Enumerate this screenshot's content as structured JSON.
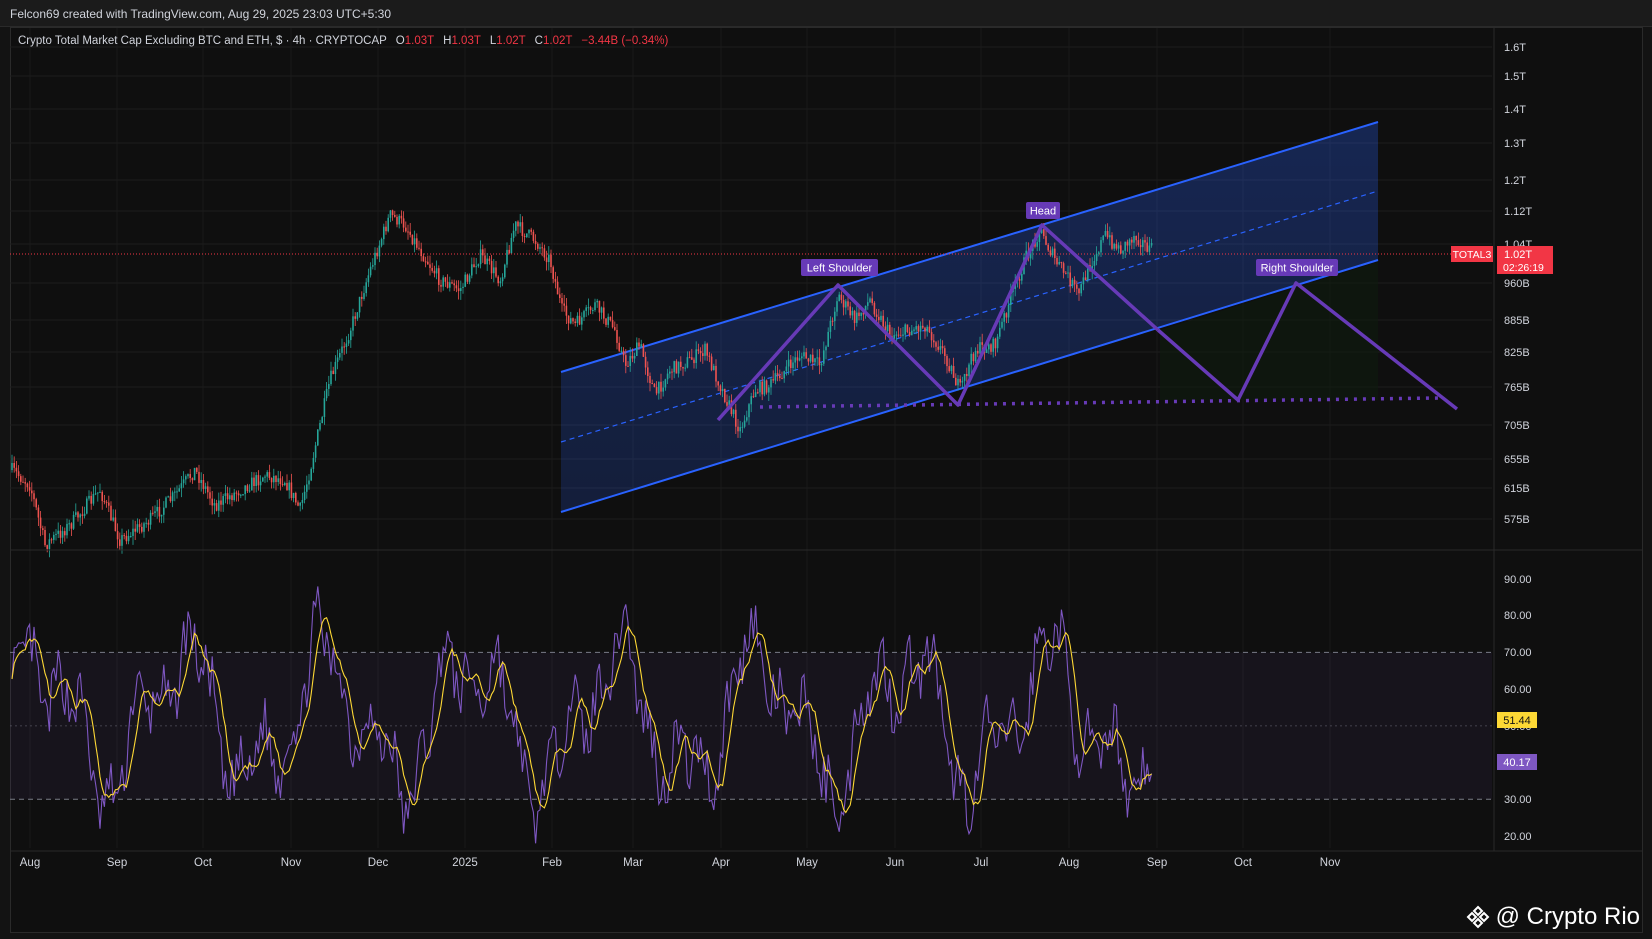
{
  "header": {
    "attribution": "Felcon69 created with TradingView.com, Aug 29, 2025 23:03 UTC+5:30"
  },
  "legend": {
    "symbol": "Crypto Total Market Cap Excluding BTC and ETH, $ · 4h · CRYPTOCAP",
    "open_label": "O",
    "open": "1.03T",
    "high_label": "H",
    "high": "1.03T",
    "low_label": "L",
    "low": "1.02T",
    "close_label": "C",
    "close": "1.02T",
    "change": "−3.44B (−0.34%)"
  },
  "colors": {
    "up": "#26a69a",
    "down": "#ef5350",
    "channel": "#2962ff",
    "pattern": "#673ab7",
    "rsi": "#7e57c2",
    "rsi_ma": "#fdd835",
    "price_tag": "#f23645"
  },
  "price_axis": {
    "ticks": [
      "1.6T",
      "1.5T",
      "1.4T",
      "1.3T",
      "1.2T",
      "1.12T",
      "1.04T",
      "960B",
      "885B",
      "825B",
      "765B",
      "705B",
      "655B",
      "615B",
      "575B"
    ],
    "current_symbol": "TOTAL3",
    "current_value": "1.02T",
    "countdown": "02:26:19"
  },
  "rsi_axis": {
    "ticks": [
      "90.00",
      "80.00",
      "70.00",
      "60.00",
      "50.00",
      "40.00",
      "30.00",
      "20.00"
    ],
    "ma_value": "51.44",
    "rsi_value": "40.17"
  },
  "time_axis": [
    "Aug",
    "Sep",
    "Oct",
    "Nov",
    "Dec",
    "2025",
    "Feb",
    "Mar",
    "Apr",
    "May",
    "Jun",
    "Jul",
    "Aug",
    "Sep",
    "Oct",
    "Nov"
  ],
  "annotations": {
    "left_shoulder": "Left Shoulder",
    "head": "Head",
    "right_shoulder": "Right Shoulder"
  },
  "watermark": {
    "text": "@ Crypto Rio",
    "icon": "binance-diamond-icon"
  },
  "chart_data": {
    "type": "candlestick",
    "panes": [
      "price",
      "rsi"
    ],
    "series": [
      {
        "name": "TOTAL3",
        "x": [
          "Aug",
          "Sep",
          "Oct",
          "Nov",
          "Dec",
          "2025",
          "Feb",
          "Mar",
          "Apr",
          "May",
          "Jun",
          "Jul",
          "Aug",
          "Sep"
        ],
        "close_approx_B": [
          640,
          600,
          615,
          590,
          1080,
          1020,
          985,
          830,
          720,
          870,
          860,
          850,
          1000,
          1020
        ]
      },
      {
        "name": "RSI",
        "range": [
          20,
          90
        ],
        "bands": [
          30,
          70
        ],
        "mid": 50
      }
    ],
    "ylim_B": [
      560,
      1620
    ],
    "log_scale": true,
    "grid": true
  }
}
